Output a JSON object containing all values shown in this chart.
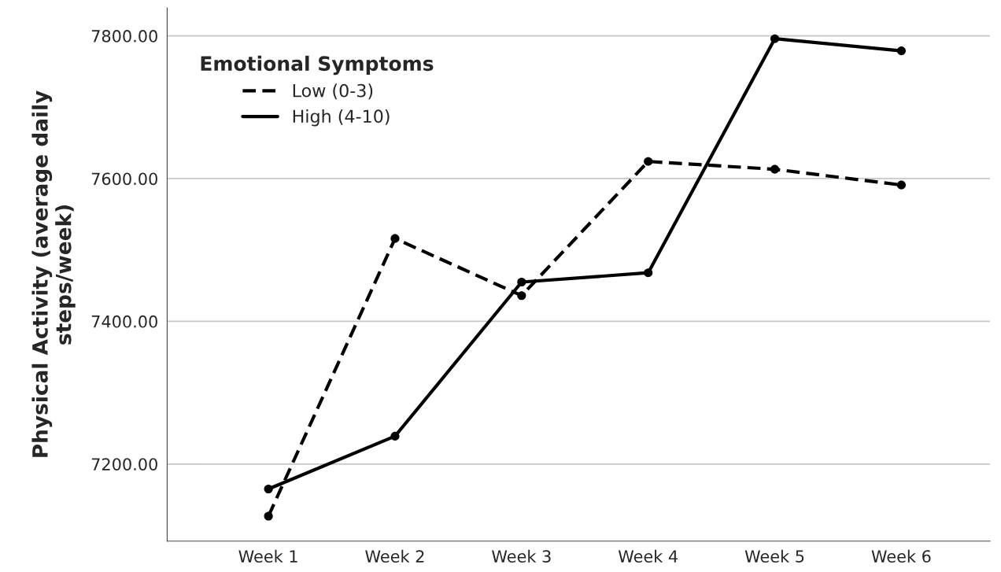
{
  "chart_data": {
    "type": "line",
    "ylabel": "Physical Activity (average daily\nsteps/week)",
    "legend_title": "Emotional Symptoms",
    "categories": [
      "Week 1",
      "Week 2",
      "Week 3",
      "Week 4",
      "Week 5",
      "Week 6"
    ],
    "series": [
      {
        "name": "Low (0-3)",
        "color": "#000000",
        "line_style": "dashed",
        "values": [
          7127,
          7516,
          7436,
          7624,
          7613,
          7591
        ]
      },
      {
        "name": "High (4-10)",
        "color": "#000000",
        "line_style": "solid",
        "values": [
          7165,
          7239,
          7455,
          7468,
          7796,
          7779
        ]
      }
    ],
    "ylim": [
      7092,
      7839
    ],
    "yticks": [
      {
        "value": 7200,
        "label": "7200.00"
      },
      {
        "value": 7400,
        "label": "7400.00"
      },
      {
        "value": 7600,
        "label": "7600.00"
      },
      {
        "value": 7800,
        "label": "7800.00"
      }
    ],
    "grid": "y",
    "legend": "top left",
    "marker": "circle"
  }
}
